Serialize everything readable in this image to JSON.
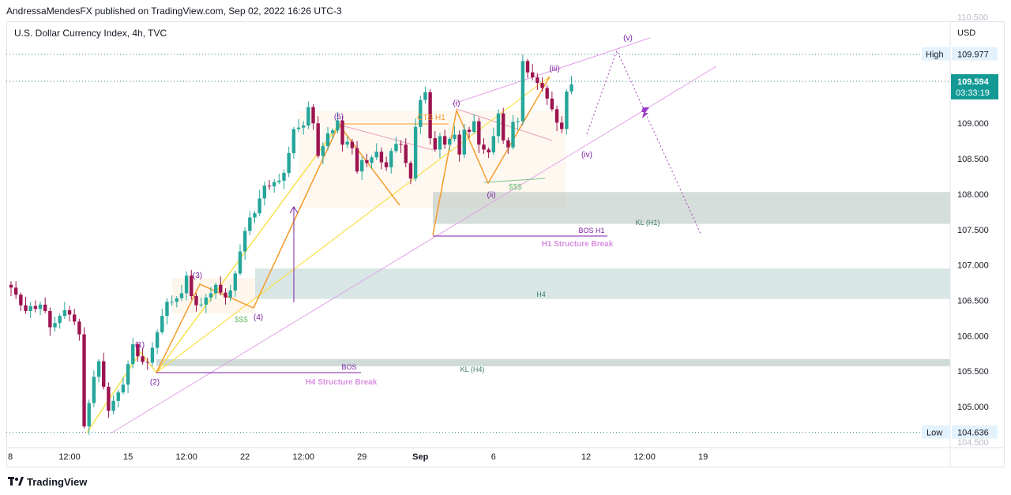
{
  "header": {
    "published": "AndressaMendesFX published on TradingView.com, Sep 02, 2022 16:26 UTC-3"
  },
  "footer": {
    "brand": "TradingView"
  },
  "colors": {
    "up": "#26a69a",
    "down": "#9c1450",
    "purple": "#7b1fa2",
    "orange": "#f59b2a",
    "yellow": "#f9e04a",
    "pink": "#e0a4e6"
  },
  "chart_data": {
    "type": "candlestick",
    "title": "U.S. Dollar Currency Index, 4h, TVC",
    "currency": "USD",
    "ylim": [
      104.5,
      110.5
    ],
    "xlim": [
      0,
      155
    ],
    "y_ticks": [
      "110.500",
      "109.000",
      "108.500",
      "108.000",
      "107.500",
      "107.000",
      "106.500",
      "106.000",
      "105.500",
      "105.000",
      "104.500"
    ],
    "y_tick_values": [
      110.5,
      109.0,
      108.5,
      108.0,
      107.5,
      107.0,
      106.5,
      106.0,
      105.5,
      105.0,
      104.5
    ],
    "x_ticks": [
      {
        "label": "8",
        "x": 0
      },
      {
        "label": "12:00",
        "x": 12
      },
      {
        "label": "15",
        "x": 24
      },
      {
        "label": "12:00",
        "x": 36
      },
      {
        "label": "22",
        "x": 48
      },
      {
        "label": "12:00",
        "x": 60
      },
      {
        "label": "29",
        "x": 72
      },
      {
        "label": "Sep",
        "x": 84
      },
      {
        "label": "6",
        "x": 99
      },
      {
        "label": "12",
        "x": 118
      },
      {
        "label": "12:00",
        "x": 130
      },
      {
        "label": "19",
        "x": 142
      }
    ],
    "price_lines": {
      "high": {
        "label": "High",
        "value": 109.977,
        "value_text": "109.977"
      },
      "current": {
        "value": 109.594,
        "value_text": "109.594",
        "countdown": "03:33:19"
      },
      "low": {
        "label": "Low",
        "value": 104.636,
        "value_text": "104.636"
      }
    },
    "close": [
      106.68,
      106.58,
      106.43,
      106.35,
      106.42,
      106.38,
      106.44,
      106.35,
      106.12,
      106.18,
      106.28,
      106.36,
      106.3,
      106.2,
      106.02,
      104.72,
      105.05,
      105.42,
      105.64,
      105.28,
      104.94,
      105.08,
      105.2,
      105.31,
      105.6,
      105.88,
      105.71,
      105.63,
      105.62,
      105.83,
      106.05,
      106.28,
      106.48,
      106.48,
      106.53,
      106.6,
      106.85,
      106.56,
      106.43,
      106.44,
      106.54,
      106.6,
      106.72,
      106.61,
      106.54,
      106.64,
      106.88,
      107.19,
      107.48,
      107.67,
      107.73,
      107.94,
      108.12,
      108.11,
      108.17,
      108.19,
      108.3,
      108.58,
      108.92,
      108.94,
      108.97,
      109.23,
      109.0,
      108.54,
      108.68,
      108.86,
      108.9,
      109.04,
      108.7,
      108.74,
      108.65,
      108.32,
      108.48,
      108.44,
      108.52,
      108.6,
      108.45,
      108.38,
      108.61,
      108.71,
      108.7,
      108.44,
      108.22,
      108.95,
      109.33,
      109.44,
      108.79,
      108.63,
      108.82,
      108.7,
      108.78,
      108.84,
      108.56,
      108.91,
      108.88,
      109.03,
      108.7,
      108.63,
      108.59,
      108.82,
      109.14,
      108.76,
      108.66,
      109.02,
      109.03,
      109.88,
      109.72,
      109.65,
      109.57,
      109.5,
      109.35,
      109.2,
      109.01,
      108.92,
      109.45,
      109.55
    ],
    "labels": {
      "w1": "(1)",
      "w2": "(2)",
      "w3": "(3)",
      "w4": "(4)",
      "w5": "(5)",
      "wi": "(i)",
      "wii": "(ii)",
      "wiii": "(iii)",
      "wiv": "(iv)",
      "wv": "(v)",
      "cts": "CTS H1",
      "sss1": "$$$",
      "sss2": "$$$",
      "bos": "BOS",
      "h4_break": "H4 Structure Break",
      "bos_h1": "BOS H1",
      "h1_break": "H1 Structure Break",
      "kl_h1": "KL (H1)",
      "h4": "H4",
      "kl_h4": "KL (H4)"
    }
  }
}
